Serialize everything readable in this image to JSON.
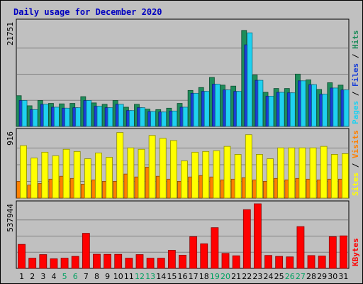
{
  "chart_data": {
    "type": "bar",
    "title": "Daily usage for December 2020",
    "categories": [
      "1",
      "2",
      "3",
      "4",
      "5",
      "6",
      "7",
      "8",
      "9",
      "10",
      "11",
      "12",
      "13",
      "14",
      "15",
      "16",
      "17",
      "18",
      "19",
      "20",
      "21",
      "22",
      "23",
      "24",
      "25",
      "26",
      "27",
      "28",
      "29",
      "30",
      "31"
    ],
    "weekend_days": [
      "5",
      "6",
      "12",
      "13",
      "19",
      "20",
      "26",
      "27"
    ],
    "panels": [
      {
        "id": "pages-files-hits",
        "ymax_label": "21751",
        "ymax": 21751,
        "right_label_parts": [
          "Pages",
          "Files",
          "Hits"
        ],
        "series": [
          {
            "name": "Pages",
            "color": "#1e8c5a",
            "values": [
              6400,
              4300,
              5400,
              4800,
              4700,
              4800,
              6200,
              4900,
              4600,
              5400,
              4000,
              4600,
              3600,
              3500,
              3800,
              4800,
              7500,
              8100,
              10200,
              8600,
              8400,
              20000,
              10700,
              7100,
              7900,
              7900,
              10900,
              9700,
              7700,
              9100,
              8600
            ]
          },
          {
            "name": "Files",
            "color": "#1a3fd6",
            "values": [
              5400,
              3500,
              4600,
              4000,
              3800,
              3900,
              5400,
              4200,
              3900,
              4600,
              3300,
              3900,
              3100,
              3000,
              3200,
              4000,
              6900,
              7300,
              8800,
              7600,
              7300,
              17000,
              9600,
              6300,
              7100,
              7000,
              9500,
              8700,
              6700,
              8000,
              7600
            ]
          },
          {
            "name": "Hits",
            "color": "#1fd1f0",
            "values": [
              5400,
              3500,
              4600,
              4000,
              3800,
              3900,
              5400,
              4200,
              3900,
              4600,
              3300,
              3900,
              3100,
              3000,
              3200,
              4000,
              6900,
              7300,
              8800,
              7600,
              7300,
              19500,
              9600,
              6300,
              7100,
              7000,
              9500,
              8700,
              6700,
              8000,
              7600
            ]
          }
        ]
      },
      {
        "id": "sites-visits",
        "ymax_label": "916",
        "ymax": 916,
        "right_label_parts": [
          "Sites",
          "Visits"
        ],
        "series": [
          {
            "name": "Sites",
            "color": "#ff8000",
            "values": [
              230,
              180,
              200,
              260,
              300,
              270,
              190,
              250,
              230,
              230,
              330,
              290,
              425,
              300,
              260,
              230,
              290,
              310,
              290,
              250,
              260,
              280,
              250,
              230,
              270,
              250,
              270,
              260,
              250,
              260,
              260
            ]
          },
          {
            "name": "Visits",
            "color": "#ffff00",
            "values": [
              720,
              550,
              630,
              580,
              670,
              640,
              540,
              620,
              560,
              900,
              690,
              670,
              860,
              820,
              790,
              510,
              630,
              640,
              650,
              710,
              600,
              870,
              600,
              540,
              690,
              690,
              690,
              690,
              710,
              600,
              610
            ]
          }
        ]
      },
      {
        "id": "kbytes",
        "ymax_label": "537944",
        "ymax": 537944,
        "right_label_parts": [
          "KBytes"
        ],
        "series": [
          {
            "name": "KBytes",
            "color": "#ff0000",
            "values": [
              200000,
              85000,
              115000,
              80000,
              85000,
              100000,
              292000,
              118000,
              117000,
              117000,
              85000,
              115000,
              85000,
              85000,
              151000,
              110000,
              264000,
              205000,
              339000,
              125000,
              105000,
              489000,
              537944,
              108000,
              100000,
              96000,
              348000,
              107000,
              103000,
              264000,
              271000
            ]
          }
        ]
      }
    ]
  }
}
